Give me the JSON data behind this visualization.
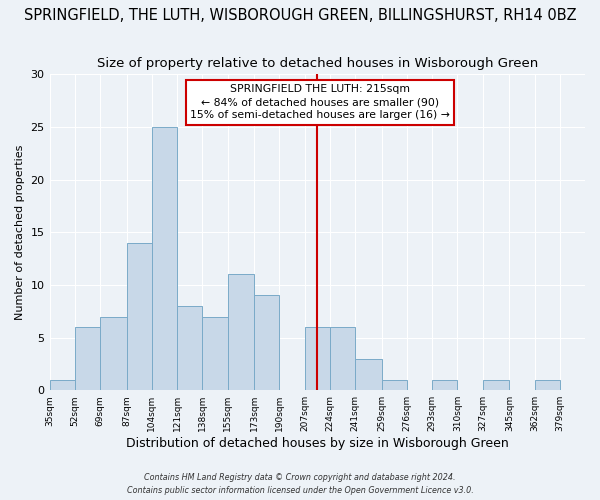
{
  "title": "SPRINGFIELD, THE LUTH, WISBOROUGH GREEN, BILLINGSHURST, RH14 0BZ",
  "subtitle": "Size of property relative to detached houses in Wisborough Green",
  "xlabel": "Distribution of detached houses by size in Wisborough Green",
  "ylabel": "Number of detached properties",
  "bin_labels": [
    "35sqm",
    "52sqm",
    "69sqm",
    "87sqm",
    "104sqm",
    "121sqm",
    "138sqm",
    "155sqm",
    "173sqm",
    "190sqm",
    "207sqm",
    "224sqm",
    "241sqm",
    "259sqm",
    "276sqm",
    "293sqm",
    "310sqm",
    "327sqm",
    "345sqm",
    "362sqm",
    "379sqm"
  ],
  "bar_values": [
    1,
    6,
    7,
    14,
    25,
    8,
    7,
    11,
    9,
    0,
    6,
    6,
    3,
    1,
    0,
    1,
    0,
    1,
    0,
    1
  ],
  "bin_edges": [
    35,
    52,
    69,
    87,
    104,
    121,
    138,
    155,
    173,
    190,
    207,
    224,
    241,
    259,
    276,
    293,
    310,
    327,
    345,
    362,
    379
  ],
  "bar_color": "#c8d8e8",
  "bar_edgecolor": "#7aaac8",
  "property_value": 215,
  "vline_color": "#cc0000",
  "annotation_title": "SPRINGFIELD THE LUTH: 215sqm",
  "annotation_line1": "← 84% of detached houses are smaller (90)",
  "annotation_line2": "15% of semi-detached houses are larger (16) →",
  "annotation_box_edgecolor": "#cc0000",
  "ylim": [
    0,
    30
  ],
  "yticks": [
    0,
    5,
    10,
    15,
    20,
    25,
    30
  ],
  "footer1": "Contains HM Land Registry data © Crown copyright and database right 2024.",
  "footer2": "Contains public sector information licensed under the Open Government Licence v3.0.",
  "background_color": "#edf2f7",
  "grid_color": "#ffffff",
  "title_fontsize": 10.5,
  "subtitle_fontsize": 9.5
}
